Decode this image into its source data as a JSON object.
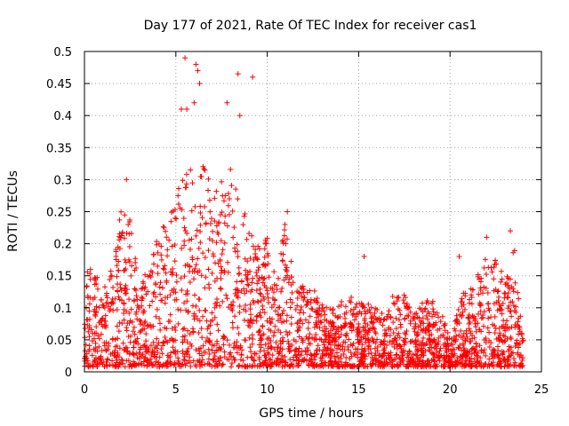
{
  "chart_data": {
    "type": "scatter",
    "title": "Day 177 of 2021, Rate Of TEC Index for receiver cas1",
    "xlabel": "GPS time / hours",
    "ylabel": "ROTI / TECUs",
    "xlim": [
      0,
      25
    ],
    "ylim": [
      0,
      0.5
    ],
    "xticks": [
      "0",
      "5",
      "10",
      "15",
      "20",
      "25"
    ],
    "yticks": [
      "0",
      "0.05",
      "0.1",
      "0.15",
      "0.2",
      "0.25",
      "0.3",
      "0.35",
      "0.4",
      "0.45",
      "0.5"
    ],
    "grid": true,
    "marker": "+",
    "marker_color": "#ff0000",
    "envelope_x": [
      0,
      0.5,
      1,
      1.5,
      2,
      2.5,
      3,
      3.5,
      4,
      4.5,
      5,
      5.5,
      6,
      6.5,
      7,
      7.5,
      8,
      8.5,
      9,
      9.5,
      10,
      10.5,
      11,
      11.5,
      12,
      12.5,
      13,
      13.5,
      14,
      14.5,
      15,
      15.5,
      16,
      16.5,
      17,
      17.5,
      18,
      18.5,
      19,
      19.5,
      20,
      20.5,
      21,
      21.5,
      22,
      22.5,
      23,
      23.5,
      24
    ],
    "envelope_y": [
      0.16,
      0.16,
      0.13,
      0.17,
      0.25,
      0.24,
      0.14,
      0.16,
      0.21,
      0.24,
      0.29,
      0.31,
      0.34,
      0.33,
      0.28,
      0.3,
      0.33,
      0.28,
      0.22,
      0.2,
      0.21,
      0.15,
      0.24,
      0.13,
      0.15,
      0.13,
      0.11,
      0.1,
      0.11,
      0.12,
      0.11,
      0.11,
      0.1,
      0.09,
      0.13,
      0.12,
      0.09,
      0.11,
      0.12,
      0.1,
      0.05,
      0.12,
      0.13,
      0.15,
      0.19,
      0.18,
      0.15,
      0.2,
      0.05
    ],
    "outliers": [
      {
        "x": 5.5,
        "y": 0.49
      },
      {
        "x": 6.1,
        "y": 0.48
      },
      {
        "x": 6.2,
        "y": 0.47
      },
      {
        "x": 6.3,
        "y": 0.45
      },
      {
        "x": 6.0,
        "y": 0.42
      },
      {
        "x": 5.3,
        "y": 0.41
      },
      {
        "x": 5.6,
        "y": 0.41
      },
      {
        "x": 8.4,
        "y": 0.465
      },
      {
        "x": 9.2,
        "y": 0.46
      },
      {
        "x": 7.8,
        "y": 0.42
      },
      {
        "x": 8.5,
        "y": 0.4
      },
      {
        "x": 2.3,
        "y": 0.3
      },
      {
        "x": 11.1,
        "y": 0.25
      },
      {
        "x": 15.3,
        "y": 0.18
      },
      {
        "x": 23.3,
        "y": 0.22
      },
      {
        "x": 22.0,
        "y": 0.21
      },
      {
        "x": 20.5,
        "y": 0.18
      }
    ]
  }
}
